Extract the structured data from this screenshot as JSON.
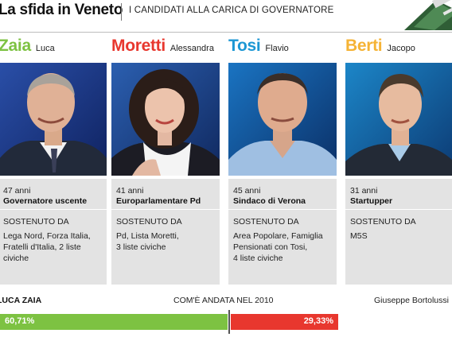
{
  "header": {
    "title": "La sfida in Veneto",
    "subtitle": "I CANDIDATI ALLA CARICA DI GOVERNATORE"
  },
  "candidates": [
    {
      "surname": "Zaia",
      "first_name": "Luca",
      "color": "#7dc242",
      "age": "47 anni",
      "role": "Governatore uscente",
      "supported_label": "SOSTENUTO DA",
      "support_lines": [
        "Lega Nord, Forza Italia,",
        "Fratelli d'Italia, 2 liste",
        "civiche"
      ]
    },
    {
      "surname": "Moretti",
      "first_name": "Alessandra",
      "color": "#e8372e",
      "age": "41 anni",
      "role": "Europarlamentare Pd",
      "supported_label": "SOSTENUTO DA",
      "support_lines": [
        "Pd, Lista Moretti,",
        "3 liste civiche"
      ]
    },
    {
      "surname": "Tosi",
      "first_name": "Flavio",
      "color": "#1c97d4",
      "age": "45 anni",
      "role": "Sindaco di Verona",
      "supported_label": "SOSTENUTO DA",
      "support_lines": [
        "Area Popolare, Famiglia",
        "Pensionati con Tosi,",
        "4 liste civiche"
      ]
    },
    {
      "surname": "Berti",
      "first_name": "Jacopo",
      "color": "#f5b335",
      "age": "31 anni",
      "role": "Startupper",
      "supported_label": "SOSTENUTO DA",
      "support_lines": [
        "M5S"
      ]
    }
  ],
  "results": {
    "left_name": "LUCA ZAIA",
    "center_label": "COM'È ANDATA NEL 2010",
    "right_name": "Giuseppe Bortolussi",
    "left_value": "60,71%",
    "right_value": "29,33%",
    "left_color": "#7dc242",
    "right_color": "#e8372e"
  }
}
